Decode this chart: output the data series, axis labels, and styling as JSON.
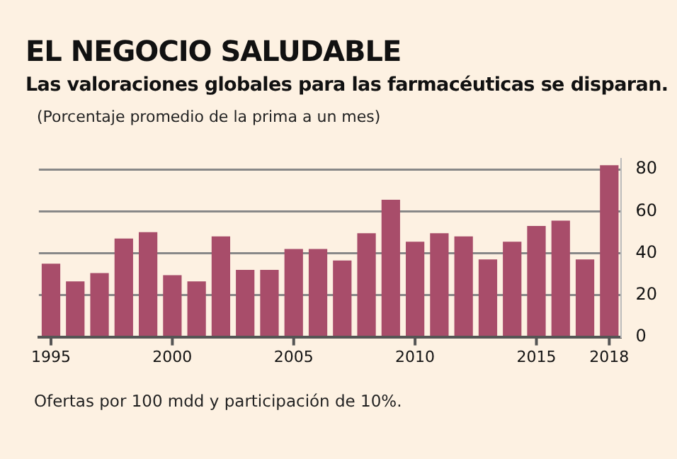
{
  "chart_data": {
    "type": "bar",
    "title": "EL NEGOCIO SALUDABLE",
    "subtitle": "Las valoraciones globales para las farmacéuticas se disparan.",
    "ylabel": "(Porcentaje promedio de la prima a un mes)",
    "categories": [
      "1995",
      null,
      null,
      null,
      null,
      "2000",
      null,
      null,
      null,
      null,
      "2005",
      null,
      null,
      null,
      null,
      "2010",
      null,
      null,
      null,
      null,
      "2015",
      null,
      null,
      "2018"
    ],
    "values": [
      35,
      26.5,
      30.5,
      47,
      50,
      29.5,
      26.5,
      48,
      32,
      32,
      42,
      42,
      36.5,
      49.5,
      65.5,
      45.5,
      49.5,
      48,
      37,
      45.5,
      53,
      55.5,
      37,
      82
    ],
    "color": "#a84d6a",
    "ylim": [
      0,
      85
    ],
    "yticks": [
      0,
      20,
      40,
      60,
      80
    ],
    "grid": "y",
    "annotations": [
      "Ofertas por 100 mdd y participación de 10%."
    ]
  }
}
